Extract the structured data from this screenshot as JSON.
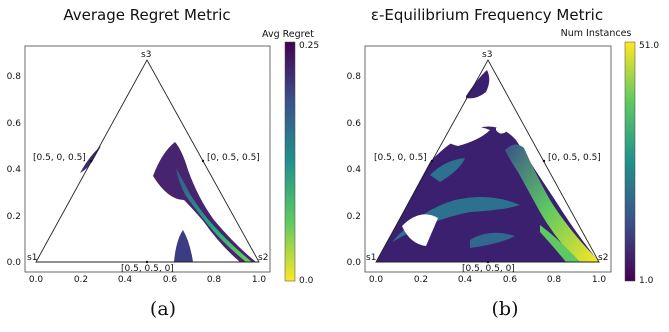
{
  "chart_data": [
    {
      "type": "heatmap",
      "title": "Average Regret Metric",
      "colorbar": {
        "label": "Avg Regret",
        "max_label": "0.25",
        "min_label": "0.0",
        "colormap": "viridis_r",
        "max": 0.25,
        "min": 0.0
      },
      "xticks": [
        "0.0",
        "0.2",
        "0.4",
        "0.6",
        "0.8",
        "1.0"
      ],
      "yticks": [
        "0.0",
        "0.2",
        "0.4",
        "0.6",
        "0.8"
      ],
      "xlim": [
        -0.05,
        1.05
      ],
      "ylim": [
        -0.05,
        0.93
      ],
      "simplex_labels": {
        "s1": "s1",
        "s2": "s2",
        "s3": "s3"
      },
      "annotations": [
        {
          "text": "[0.5, 0, 0.5]",
          "x": 0.25,
          "y": 0.433
        },
        {
          "text": "[0, 0.5, 0.5]",
          "x": 0.75,
          "y": 0.433
        },
        {
          "text": "[0.5, 0.5, 0]",
          "x": 0.5,
          "y": 0.0
        }
      ],
      "caption": "(a)"
    },
    {
      "type": "heatmap",
      "title": "ε-Equilibrium Frequency Metric",
      "colorbar": {
        "label": "Num Instances",
        "max_label": "51.0",
        "min_label": "1.0",
        "colormap": "viridis",
        "max": 51.0,
        "min": 1.0
      },
      "xticks": [
        "0.0",
        "0.2",
        "0.4",
        "0.6",
        "0.8",
        "1.0"
      ],
      "yticks": [
        "0.0",
        "0.2",
        "0.4",
        "0.6",
        "0.8"
      ],
      "xlim": [
        -0.05,
        1.05
      ],
      "ylim": [
        -0.05,
        0.93
      ],
      "simplex_labels": {
        "s1": "s1",
        "s2": "s2",
        "s3": "s3"
      },
      "annotations": [
        {
          "text": "[0.5, 0, 0.5]",
          "x": 0.25,
          "y": 0.433
        },
        {
          "text": "[0, 0.5, 0.5]",
          "x": 0.75,
          "y": 0.433
        },
        {
          "text": "[0.5, 0.5, 0]",
          "x": 0.5,
          "y": 0.0
        }
      ],
      "caption": "(b)"
    }
  ]
}
